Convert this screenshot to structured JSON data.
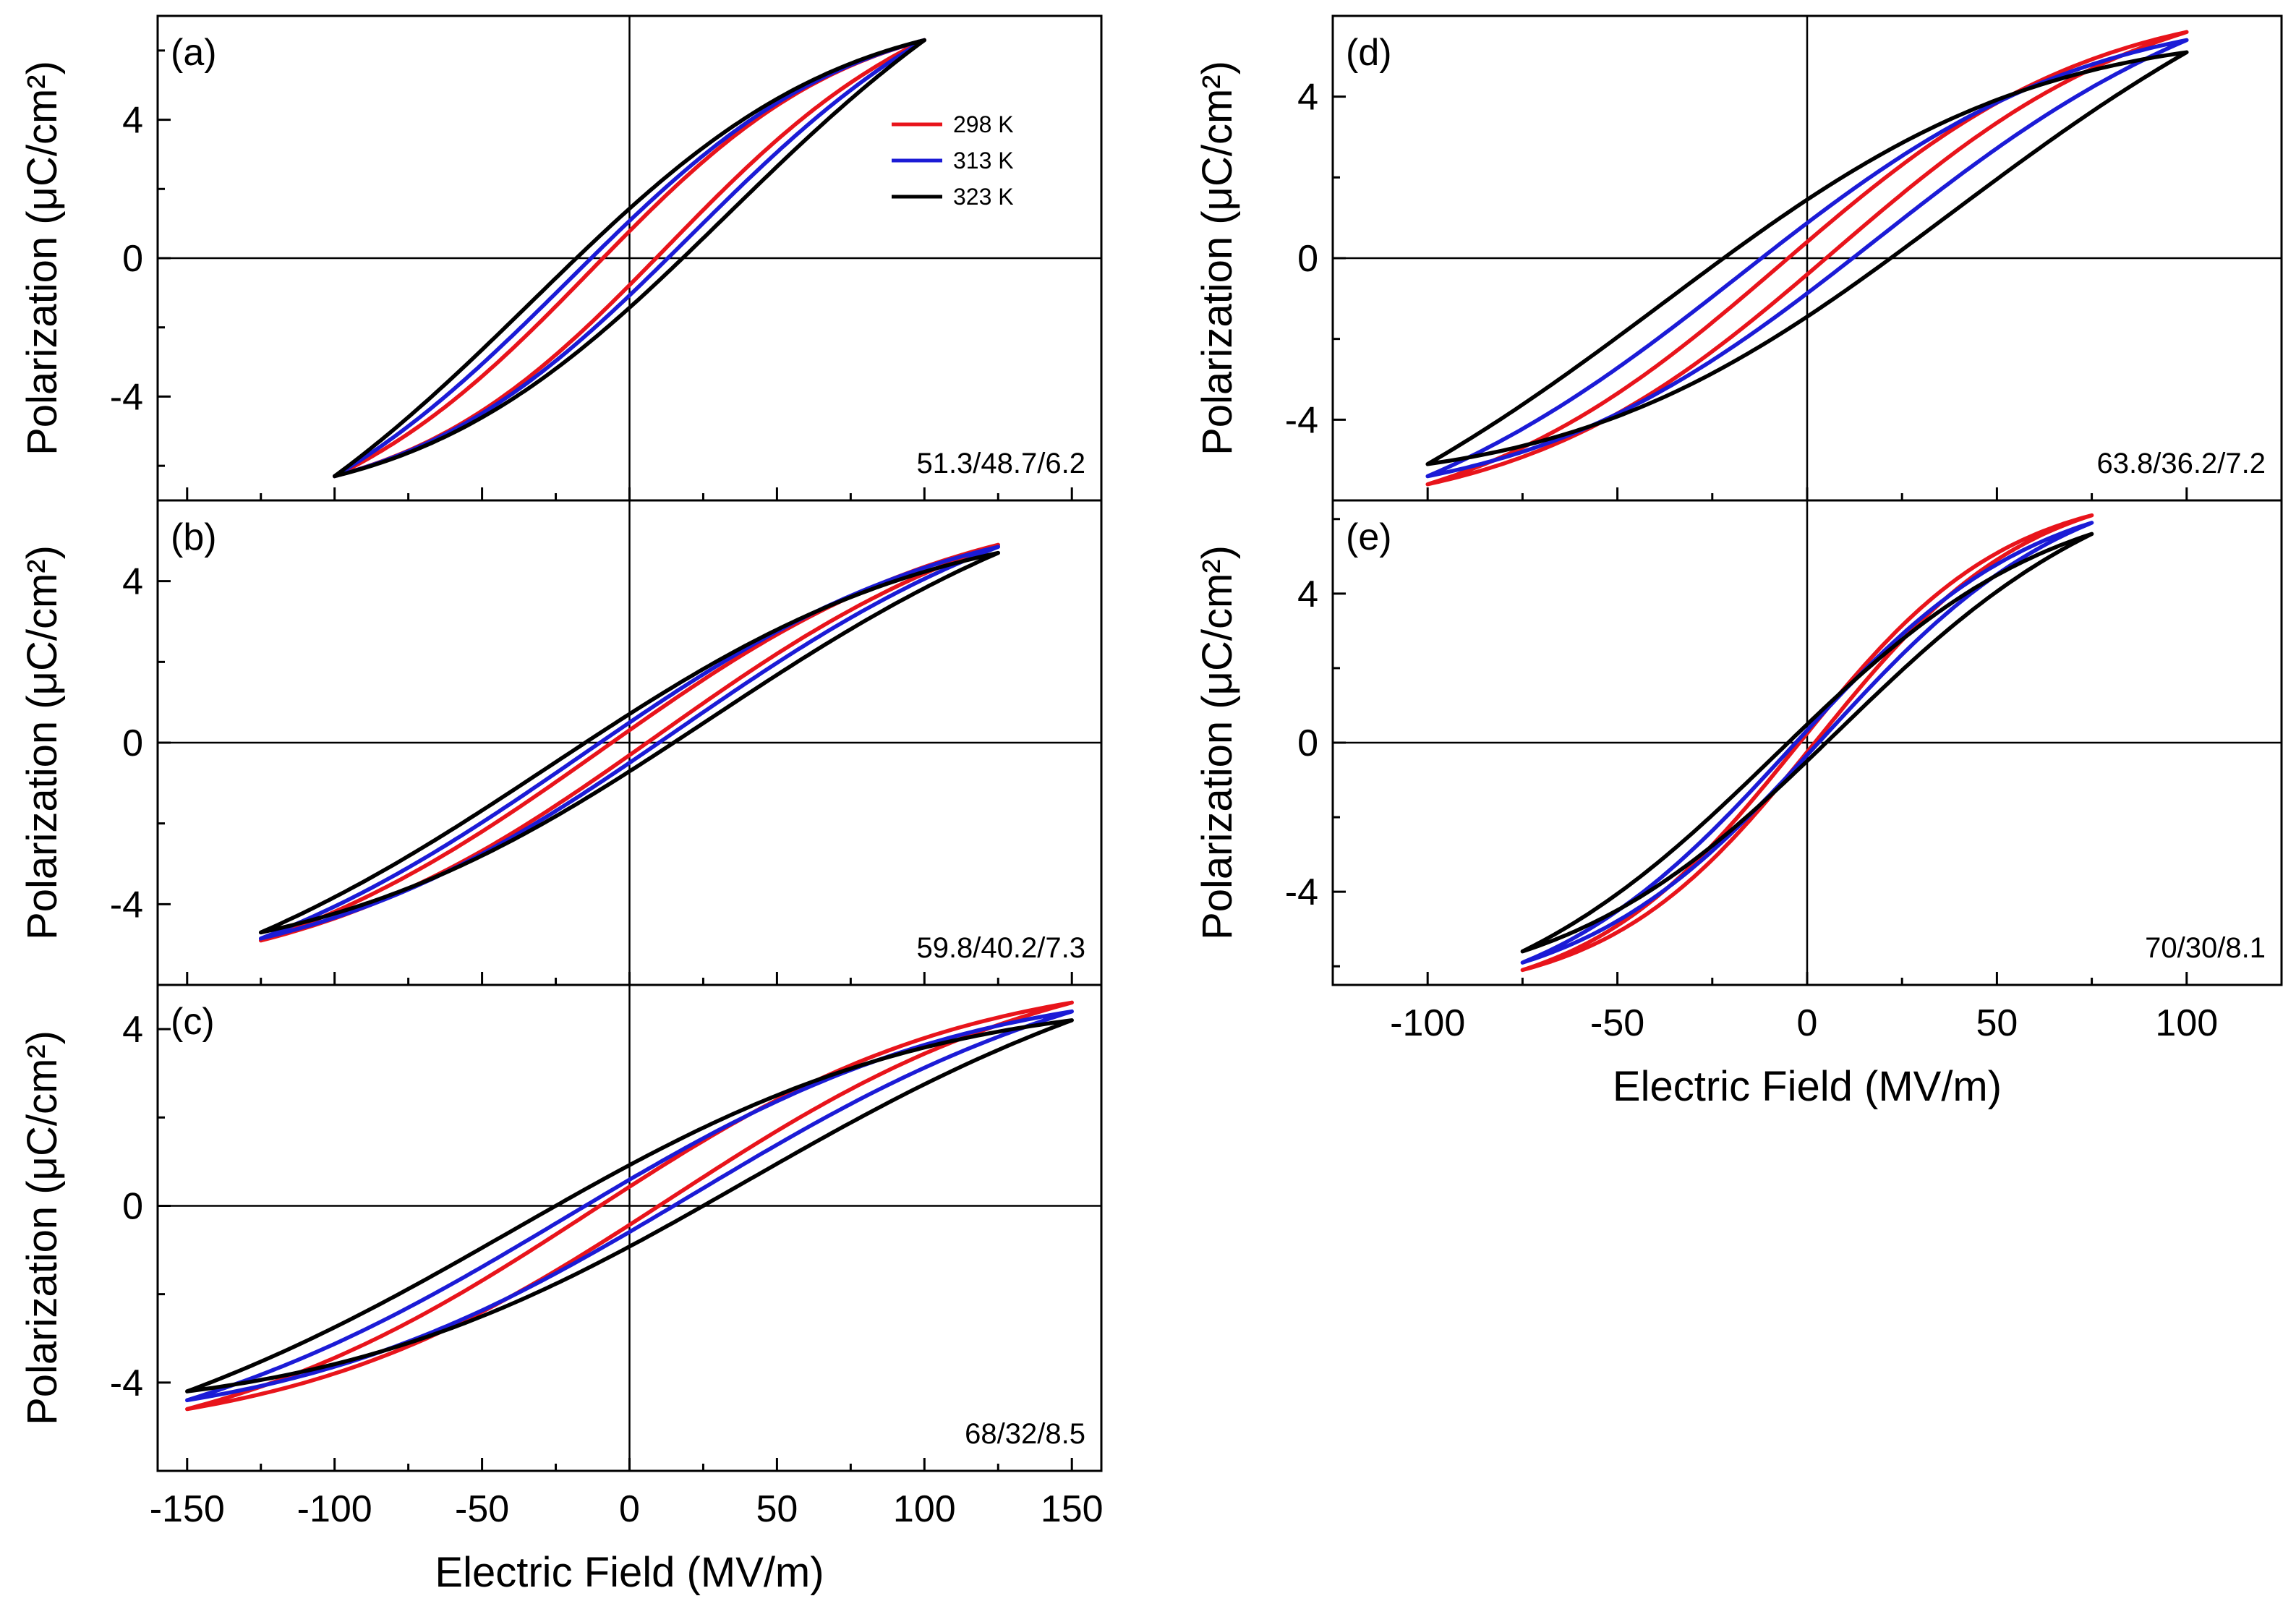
{
  "figure": {
    "legend": [
      {
        "label": "298 K",
        "color": "#e8141b"
      },
      {
        "label": "313 K",
        "color": "#1b1bd6"
      },
      {
        "label": "323 K",
        "color": "#000000"
      }
    ]
  },
  "chart_data": [
    {
      "id": "a",
      "type": "line",
      "panel_label": "(a)",
      "composition": "51.3/48.7/6.2",
      "xlabel": "Electric Field (MV/m)",
      "ylabel": "Polarization (μC/cm²)",
      "xlim": [
        -160,
        160
      ],
      "ylim": [
        -7,
        7
      ],
      "xticks": [
        -150,
        -100,
        -50,
        0,
        50,
        100,
        150
      ],
      "yticks": [
        -4,
        0,
        4
      ],
      "show_x_tick_labels": false,
      "show_x_title": false,
      "series": [
        {
          "name": "298 K",
          "Emax": 100,
          "Pmax": 6.3,
          "Pr": 0.9,
          "Ec": 9,
          "shape": 1.1
        },
        {
          "name": "313 K",
          "Emax": 100,
          "Pmax": 6.3,
          "Pr": 1.3,
          "Ec": 13,
          "shape": 1.0
        },
        {
          "name": "323 K",
          "Emax": 100,
          "Pmax": 6.3,
          "Pr": 1.8,
          "Ec": 18,
          "shape": 0.9
        }
      ]
    },
    {
      "id": "b",
      "type": "line",
      "panel_label": "(b)",
      "composition": "59.8/40.2/7.3",
      "xlabel": "Electric Field (MV/m)",
      "ylabel": "Polarization (μC/cm²)",
      "xlim": [
        -160,
        160
      ],
      "ylim": [
        -6,
        6
      ],
      "xticks": [
        -150,
        -100,
        -50,
        0,
        50,
        100,
        150
      ],
      "yticks": [
        -4,
        0,
        4
      ],
      "show_x_tick_labels": false,
      "show_x_title": false,
      "series": [
        {
          "name": "298 K",
          "Emax": 125,
          "Pmax": 4.9,
          "Pr": 0.35,
          "Ec": 6,
          "shape": 1.0
        },
        {
          "name": "313 K",
          "Emax": 125,
          "Pmax": 4.85,
          "Pr": 0.6,
          "Ec": 10,
          "shape": 0.95
        },
        {
          "name": "323 K",
          "Emax": 125,
          "Pmax": 4.7,
          "Pr": 0.9,
          "Ec": 15,
          "shape": 0.9
        }
      ]
    },
    {
      "id": "c",
      "type": "line",
      "panel_label": "(c)",
      "composition": "68/32/8.5",
      "xlabel": "Electric Field (MV/m)",
      "ylabel": "Polarization (μC/cm²)",
      "xlim": [
        -160,
        160
      ],
      "ylim": [
        -6,
        5
      ],
      "xticks": [
        -150,
        -100,
        -50,
        0,
        50,
        100,
        150
      ],
      "yticks": [
        -4,
        0,
        4
      ],
      "show_x_tick_labels": true,
      "show_x_title": true,
      "series": [
        {
          "name": "298 K",
          "Emax": 150,
          "Pmax": 4.6,
          "Pr": 0.5,
          "Ec": 10,
          "shape": 1.15
        },
        {
          "name": "313 K",
          "Emax": 150,
          "Pmax": 4.4,
          "Pr": 0.65,
          "Ec": 15,
          "shape": 1.05
        },
        {
          "name": "323 K",
          "Emax": 150,
          "Pmax": 4.2,
          "Pr": 0.85,
          "Ec": 25,
          "shape": 1.0
        }
      ]
    },
    {
      "id": "d",
      "type": "line",
      "panel_label": "(d)",
      "composition": "63.8/36.2/7.2",
      "xlabel": "Electric Field (MV/m)",
      "ylabel": "Polarization (μC/cm²)",
      "xlim": [
        -125,
        125
      ],
      "ylim": [
        -6,
        6
      ],
      "xticks": [
        -100,
        -50,
        0,
        50,
        100
      ],
      "yticks": [
        -4,
        0,
        4
      ],
      "show_x_tick_labels": false,
      "show_x_title": false,
      "series": [
        {
          "name": "298 K",
          "Emax": 100,
          "Pmax": 5.6,
          "Pr": 0.3,
          "Ec": 5,
          "shape": 1.2
        },
        {
          "name": "313 K",
          "Emax": 100,
          "Pmax": 5.4,
          "Pr": 0.7,
          "Ec": 12,
          "shape": 1.05
        },
        {
          "name": "323 K",
          "Emax": 100,
          "Pmax": 5.1,
          "Pr": 1.3,
          "Ec": 22,
          "shape": 0.95
        }
      ]
    },
    {
      "id": "e",
      "type": "line",
      "panel_label": "(e)",
      "composition": "70/30/8.1",
      "xlabel": "Electric Field (MV/m)",
      "ylabel": "Polarization (μC/cm²)",
      "xlim": [
        -125,
        125
      ],
      "ylim": [
        -6.5,
        6.5
      ],
      "xticks": [
        -100,
        -50,
        0,
        50,
        100
      ],
      "yticks": [
        -4,
        0,
        4
      ],
      "show_x_tick_labels": true,
      "show_x_title": true,
      "series": [
        {
          "name": "298 K",
          "Emax": 75,
          "Pmax": 6.1,
          "Pr": 0.15,
          "Ec": 2,
          "shape": 1.35
        },
        {
          "name": "313 K",
          "Emax": 75,
          "Pmax": 5.9,
          "Pr": 0.3,
          "Ec": 3,
          "shape": 1.15
        },
        {
          "name": "323 K",
          "Emax": 75,
          "Pmax": 5.6,
          "Pr": 0.5,
          "Ec": 5,
          "shape": 1.0
        }
      ]
    }
  ]
}
